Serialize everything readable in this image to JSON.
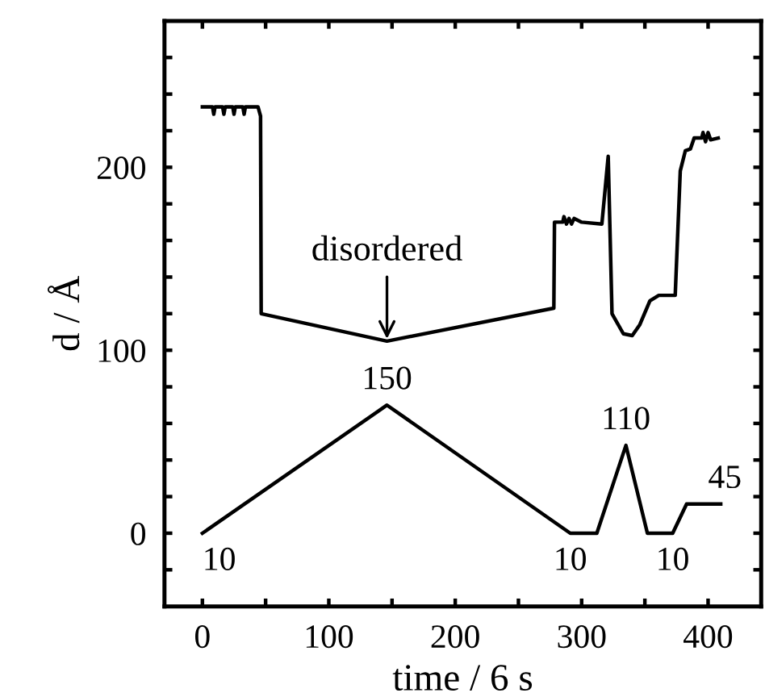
{
  "chart_data": {
    "type": "line",
    "xlabel": "time / 6 s",
    "ylabel": "d / Å",
    "xlim": [
      -30,
      442
    ],
    "ylim": [
      -40,
      280
    ],
    "xticks": [
      0,
      {
        "value": 50,
        "label": null
      },
      100,
      {
        "value": 150,
        "label": null
      },
      200,
      {
        "value": 250,
        "label": null
      },
      300,
      {
        "value": 350,
        "label": null
      },
      400
    ],
    "yticks": [
      {
        "value": -20,
        "label": null
      },
      0,
      {
        "value": 20,
        "label": null
      },
      {
        "value": 40,
        "label": null
      },
      {
        "value": 60,
        "label": null
      },
      {
        "value": 80,
        "label": null
      },
      100,
      {
        "value": 120,
        "label": null
      },
      {
        "value": 140,
        "label": null
      },
      {
        "value": 160,
        "label": null
      },
      {
        "value": 180,
        "label": null
      },
      200,
      {
        "value": 220,
        "label": null
      },
      {
        "value": 240,
        "label": null
      },
      {
        "value": 260,
        "label": null
      }
    ],
    "grid": false,
    "legend": false,
    "marker": "none",
    "line_style": "solid",
    "series": [
      {
        "color": "#000000",
        "x": [
          0,
          8,
          9,
          10,
          16,
          17,
          18,
          24,
          25,
          26,
          32,
          33,
          34,
          44,
          46,
          46.5,
          146,
          278,
          278.5,
          285,
          286,
          288,
          290,
          292,
          294,
          300,
          316,
          321,
          324,
          333,
          340,
          346,
          354,
          361,
          374,
          378,
          382,
          386,
          389,
          395,
          396,
          398,
          400,
          402,
          408
        ],
        "values": [
          233,
          233,
          229,
          233,
          233,
          229,
          233,
          233,
          229,
          233,
          233,
          229,
          233,
          233,
          228,
          120,
          105,
          123,
          170,
          170,
          173,
          169,
          172,
          169,
          172,
          170,
          169,
          206,
          120,
          109,
          108,
          114,
          127,
          130,
          130,
          198,
          209,
          210,
          216,
          216,
          219,
          214,
          219,
          215,
          216
        ]
      },
      {
        "color": "#000000",
        "x": [
          0,
          146,
          291,
          312,
          335,
          352,
          372,
          383,
          410
        ],
        "values": [
          0,
          70,
          0,
          0,
          48,
          0,
          0,
          16,
          16
        ]
      }
    ],
    "annotations": [
      {
        "text": "disordered",
        "x": 146,
        "y": 105
      },
      {
        "text": "10",
        "x": 0,
        "y": 0
      },
      {
        "text": "150",
        "x": 146,
        "y": 70
      },
      {
        "text": "10",
        "x": 291,
        "y": 0
      },
      {
        "text": "110",
        "x": 335,
        "y": 48
      },
      {
        "text": "10",
        "x": 372,
        "y": 0
      },
      {
        "text": "45",
        "x": 400,
        "y": 16
      }
    ]
  }
}
